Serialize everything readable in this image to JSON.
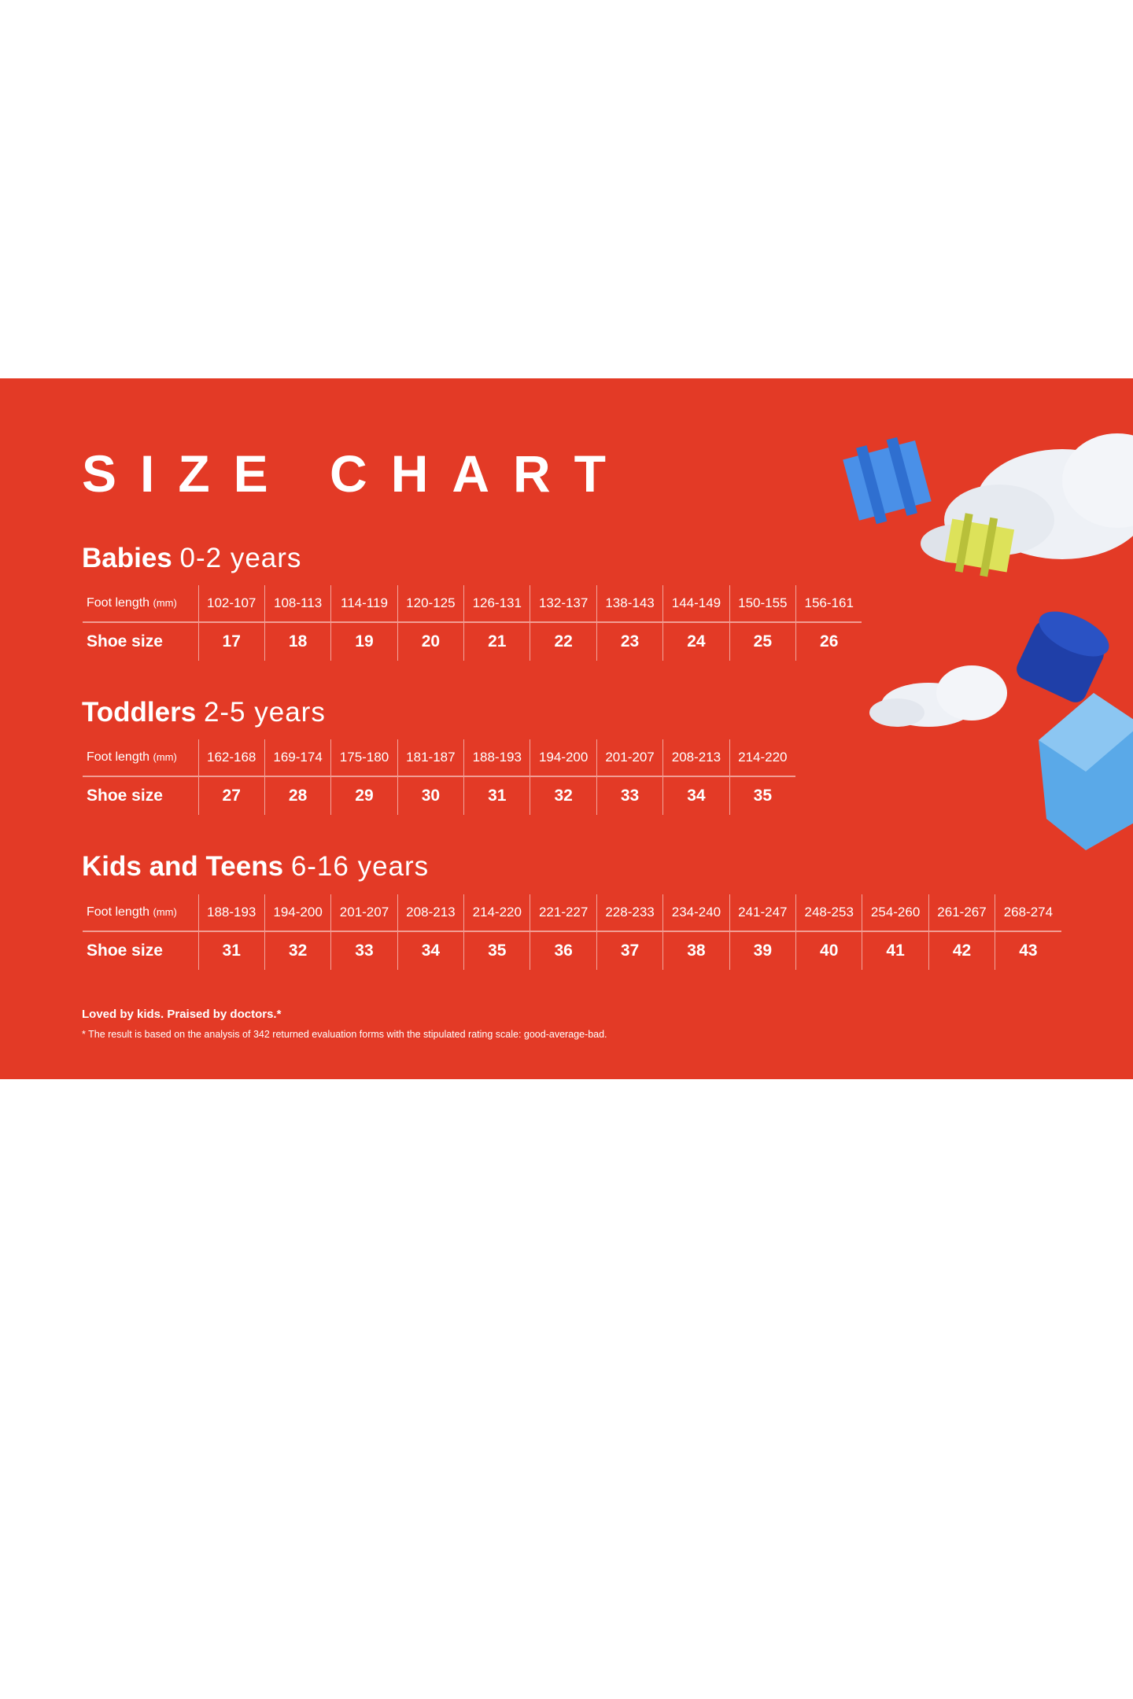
{
  "title": "SIZE CHART",
  "colors": {
    "background": "#e33a26",
    "text": "#ffffff"
  },
  "row_labels": {
    "foot_length": "Foot length",
    "unit": "(mm)",
    "shoe_size": "Shoe size"
  },
  "sections": [
    {
      "name": "Babies",
      "age": "0-2 years",
      "foot_length": [
        "102-107",
        "108-113",
        "114-119",
        "120-125",
        "126-131",
        "132-137",
        "138-143",
        "144-149",
        "150-155",
        "156-161"
      ],
      "shoe_size": [
        "17",
        "18",
        "19",
        "20",
        "21",
        "22",
        "23",
        "24",
        "25",
        "26"
      ]
    },
    {
      "name": "Toddlers",
      "age": "2-5 years",
      "foot_length": [
        "162-168",
        "169-174",
        "175-180",
        "181-187",
        "188-193",
        "194-200",
        "201-207",
        "208-213",
        "214-220"
      ],
      "shoe_size": [
        "27",
        "28",
        "29",
        "30",
        "31",
        "32",
        "33",
        "34",
        "35"
      ]
    },
    {
      "name": "Kids and Teens",
      "age": "6-16 years",
      "foot_length": [
        "188-193",
        "194-200",
        "201-207",
        "208-213",
        "214-220",
        "221-227",
        "228-233",
        "234-240",
        "241-247",
        "248-253",
        "254-260",
        "261-267",
        "268-274"
      ],
      "shoe_size": [
        "31",
        "32",
        "33",
        "34",
        "35",
        "36",
        "37",
        "38",
        "39",
        "40",
        "41",
        "42",
        "43"
      ]
    }
  ],
  "footer": {
    "tagline": "Loved by kids. Praised by doctors.*",
    "note": "* The result is based on the analysis of 342 returned evaluation forms with the stipulated rating scale: good-average-bad."
  },
  "decorations": [
    "cloud",
    "blue-toy-block",
    "yellow-toy-block",
    "blue-cylinder-block"
  ]
}
